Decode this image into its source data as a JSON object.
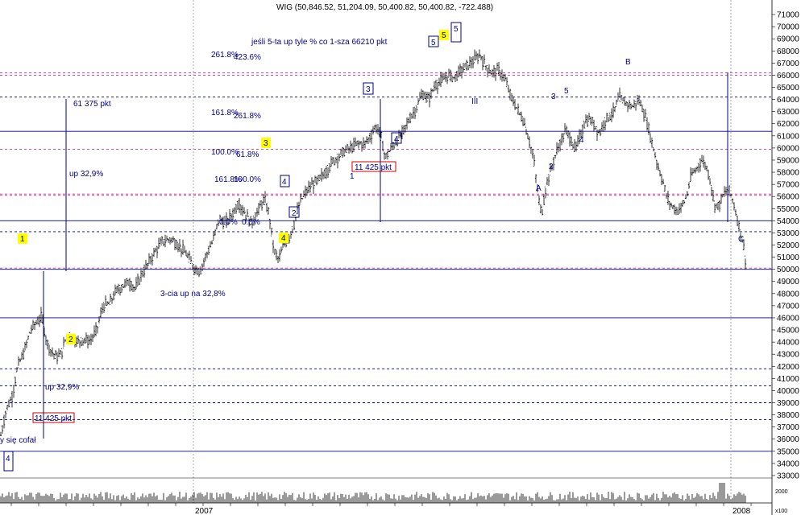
{
  "chart_data": {
    "type": "candlestick",
    "title": "WIG (50,846.52, 51,204.09, 50,400.82, 50,400.82, -722.488)",
    "ylim": [
      32400,
      71800
    ],
    "y_ticks": [
      33000,
      34000,
      35000,
      36000,
      37000,
      38000,
      39000,
      40000,
      41000,
      42000,
      43000,
      44000,
      45000,
      46000,
      47000,
      48000,
      49000,
      50000,
      51000,
      52000,
      53000,
      54000,
      55000,
      56000,
      57000,
      58000,
      59000,
      60000,
      61000,
      62000,
      63000,
      64000,
      65000,
      66000,
      67000,
      68000,
      69000,
      70000,
      71000
    ],
    "y_tick_labels": [
      "33000",
      "34000",
      "35000",
      "36000",
      "37000",
      "38000",
      "39000",
      "40000",
      "41000",
      "42000",
      "43000",
      "44000",
      "45000",
      "46000",
      "47000",
      "48000",
      "49000",
      "50000",
      "51000",
      "52000",
      "53000",
      "54000",
      "55000",
      "56000",
      "57000",
      "58000",
      "59000",
      "60000",
      "61000",
      "62000",
      "63000",
      "64000",
      "65000",
      "66000",
      "67000",
      "68000",
      "69000",
      "70000",
      "71000"
    ],
    "x_labels": [
      "2007",
      "2008"
    ],
    "volume_label": "x100",
    "volume_tick": "2000",
    "price_path": [
      [
        0,
        36000
      ],
      [
        8,
        38500
      ],
      [
        15,
        39500
      ],
      [
        22,
        42000
      ],
      [
        30,
        43200
      ],
      [
        38,
        45000
      ],
      [
        45,
        45600
      ],
      [
        52,
        46100
      ],
      [
        58,
        44000
      ],
      [
        64,
        43200
      ],
      [
        70,
        42800
      ],
      [
        76,
        43000
      ],
      [
        82,
        44400
      ],
      [
        88,
        44600
      ],
      [
        96,
        44000
      ],
      [
        104,
        44200
      ],
      [
        112,
        44100
      ],
      [
        120,
        45000
      ],
      [
        128,
        47000
      ],
      [
        136,
        47200
      ],
      [
        144,
        48200
      ],
      [
        152,
        48600
      ],
      [
        160,
        49000
      ],
      [
        168,
        48400
      ],
      [
        176,
        49600
      ],
      [
        184,
        50500
      ],
      [
        192,
        51400
      ],
      [
        200,
        52200
      ],
      [
        206,
        52400
      ],
      [
        212,
        52500
      ],
      [
        218,
        52200
      ],
      [
        224,
        51800
      ],
      [
        232,
        51200
      ],
      [
        240,
        50200
      ],
      [
        248,
        49800
      ],
      [
        256,
        51200
      ],
      [
        264,
        52300
      ],
      [
        272,
        54200
      ],
      [
        280,
        53800
      ],
      [
        288,
        54500
      ],
      [
        296,
        55500
      ],
      [
        304,
        54600
      ],
      [
        312,
        53800
      ],
      [
        320,
        54800
      ],
      [
        328,
        55800
      ],
      [
        334,
        54500
      ],
      [
        340,
        51500
      ],
      [
        346,
        50800
      ],
      [
        352,
        52000
      ],
      [
        358,
        52500
      ],
      [
        364,
        53500
      ],
      [
        372,
        55500
      ],
      [
        380,
        56400
      ],
      [
        388,
        57000
      ],
      [
        396,
        57400
      ],
      [
        404,
        58000
      ],
      [
        412,
        58800
      ],
      [
        420,
        59300
      ],
      [
        428,
        59800
      ],
      [
        436,
        60000
      ],
      [
        444,
        60400
      ],
      [
        452,
        60300
      ],
      [
        460,
        61000
      ],
      [
        466,
        61800
      ],
      [
        472,
        61200
      ],
      [
        478,
        59200
      ],
      [
        484,
        59800
      ],
      [
        492,
        60600
      ],
      [
        500,
        61300
      ],
      [
        508,
        62400
      ],
      [
        516,
        63200
      ],
      [
        524,
        64500
      ],
      [
        532,
        64000
      ],
      [
        540,
        65200
      ],
      [
        548,
        65500
      ],
      [
        556,
        66000
      ],
      [
        564,
        65800
      ],
      [
        572,
        66400
      ],
      [
        580,
        66800
      ],
      [
        588,
        67200
      ],
      [
        596,
        67700
      ],
      [
        602,
        66800
      ],
      [
        610,
        66200
      ],
      [
        618,
        66400
      ],
      [
        626,
        65800
      ],
      [
        634,
        64200
      ],
      [
        642,
        63200
      ],
      [
        650,
        62200
      ],
      [
        656,
        60800
      ],
      [
        662,
        59200
      ],
      [
        668,
        56000
      ],
      [
        672,
        54500
      ],
      [
        678,
        57000
      ],
      [
        684,
        58200
      ],
      [
        690,
        59600
      ],
      [
        696,
        60500
      ],
      [
        702,
        61500
      ],
      [
        708,
        60800
      ],
      [
        714,
        59800
      ],
      [
        720,
        61000
      ],
      [
        726,
        62200
      ],
      [
        732,
        62400
      ],
      [
        738,
        61800
      ],
      [
        744,
        61200
      ],
      [
        750,
        62200
      ],
      [
        756,
        62600
      ],
      [
        762,
        63000
      ],
      [
        768,
        64200
      ],
      [
        774,
        63800
      ],
      [
        780,
        63600
      ],
      [
        786,
        63400
      ],
      [
        792,
        64000
      ],
      [
        798,
        63200
      ],
      [
        804,
        61800
      ],
      [
        810,
        60200
      ],
      [
        816,
        58600
      ],
      [
        822,
        57400
      ],
      [
        828,
        55800
      ],
      [
        834,
        55200
      ],
      [
        840,
        54800
      ],
      [
        846,
        55200
      ],
      [
        852,
        56000
      ],
      [
        858,
        57800
      ],
      [
        864,
        58200
      ],
      [
        870,
        59000
      ],
      [
        876,
        58600
      ],
      [
        882,
        57200
      ],
      [
        886,
        55400
      ],
      [
        892,
        55200
      ],
      [
        898,
        56200
      ],
      [
        904,
        56600
      ],
      [
        910,
        55600
      ],
      [
        916,
        53800
      ],
      [
        922,
        52200
      ],
      [
        926,
        50400
      ]
    ],
    "volume_seed": 7,
    "horizontal_lines": [
      {
        "value": 61375,
        "style": "solid",
        "color": "#00008b"
      },
      {
        "value": 54000,
        "style": "solid",
        "color": "#00008b"
      },
      {
        "value": 50000,
        "style": "solid",
        "color": "#00008b"
      },
      {
        "value": 46000,
        "style": "solid",
        "color": "#00008b"
      },
      {
        "value": 35000,
        "style": "solid",
        "color": "#00008b"
      },
      {
        "value": 64200,
        "style": "dashed",
        "color": "#00008b"
      },
      {
        "value": 53100,
        "style": "dashed",
        "color": "#00008b"
      },
      {
        "value": 41800,
        "style": "dashed",
        "color": "#00008b"
      },
      {
        "value": 40400,
        "style": "dashed",
        "color": "#00008b"
      },
      {
        "value": 39000,
        "style": "dashed",
        "color": "#00008b"
      },
      {
        "value": 37600,
        "style": "dashed",
        "color": "#00008b"
      },
      {
        "value": 66200,
        "style": "dashed",
        "color": "#cc3399"
      },
      {
        "value": 66000,
        "style": "dashed",
        "color": "#cc3399"
      },
      {
        "value": 59900,
        "style": "dashed",
        "color": "#cc3399"
      },
      {
        "value": 56200,
        "style": "dashed",
        "color": "#cc3399"
      },
      {
        "value": 56100,
        "style": "dashed",
        "color": "#cc3399"
      },
      {
        "value": 50100,
        "style": "dashed",
        "color": "#cc3399"
      }
    ],
    "annotations": {
      "sixty_one_pkt": "61 375 pkt",
      "up_32_9_top": "up 32,9%",
      "up_32_9_bottom": "up 32,9%",
      "eleven_pkt_top": "11 425 pkt",
      "eleven_pkt_bottom": "11 425 pkt",
      "three_cia": "3-cia up na 32,8%",
      "jesli": "jeśli 5-ta up tyle % co 1-sza 66210 pkt",
      "cofal": "y się cofał",
      "fib_261": "261.8%",
      "fib_423": "423.6%",
      "fib_161": "161.8%",
      "fib_261b": "261.8%",
      "fib_100": "100.0%",
      "fib_618": "61.8%",
      "fib_1618_small": "161.8%",
      "fib_100b": "100.0%",
      "fib_0": "0.0%",
      "fib_0b": "0.0%",
      "wave_1": "1",
      "wave_2": "2",
      "wave_3": "3",
      "wave_4": "4",
      "wave_5": "5",
      "box_4_bottom": "4",
      "box_4_mid": "4",
      "box_2": "2",
      "box_3": "3",
      "box_4_right": "4",
      "box_5_a": "5",
      "box_5_b": "5",
      "small_1": "1",
      "roman_iii": "III",
      "sub_2": "2",
      "sub_3": "3",
      "sub_4": "4",
      "sub_5": "5",
      "label_a": "A",
      "label_b": "B",
      "label_c": "C"
    }
  }
}
